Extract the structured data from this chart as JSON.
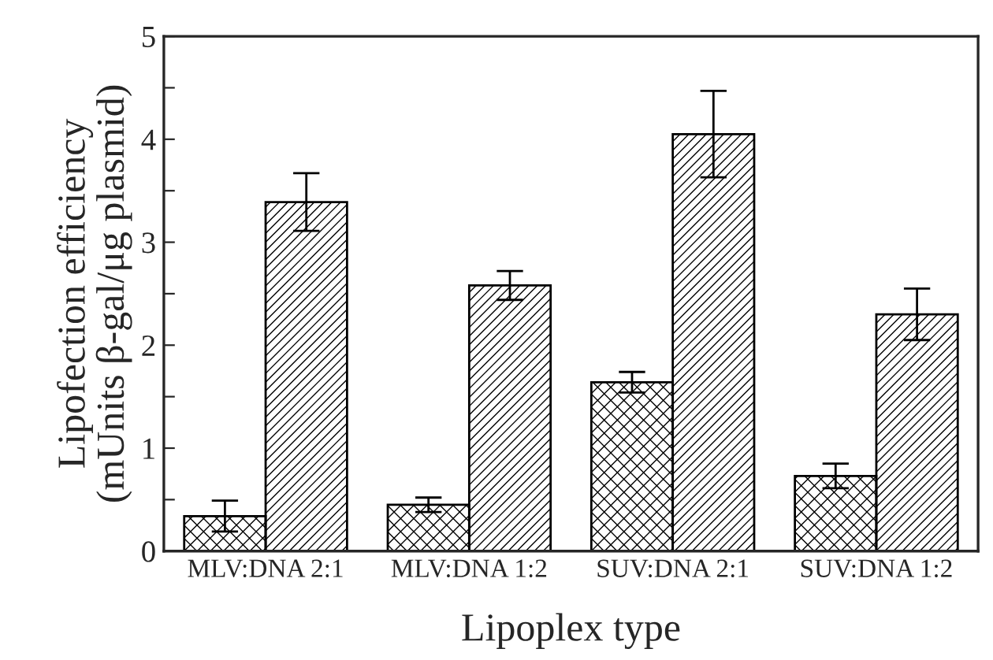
{
  "chart_data": {
    "type": "bar",
    "xlabel": "Lipoplex type",
    "ylabel": "Lipofection efficiency\n(mUnits β-gal/μg plasmid)",
    "categories": [
      "MLV:DNA 2:1",
      "MLV:DNA 1:2",
      "SUV:DNA 2:1",
      "SUV:DNA 1:2"
    ],
    "series": [
      {
        "color": "#000000",
        "values": [
          0.34,
          0.45,
          1.64,
          0.73
        ],
        "errors": [
          0.15,
          0.07,
          0.1,
          0.12
        ]
      },
      {
        "color": "#000000",
        "values": [
          3.39,
          2.58,
          4.05,
          2.3
        ],
        "errors": [
          0.28,
          0.14,
          0.42,
          0.25
        ]
      }
    ],
    "ylim": [
      0,
      5
    ],
    "yticks": [
      0,
      {
        "value": 0.5,
        "label": null
      },
      1,
      {
        "value": 1.5,
        "label": null
      },
      2,
      {
        "value": 2.5,
        "label": null
      },
      3,
      {
        "value": 3.5,
        "label": null
      },
      4,
      {
        "value": 4.5,
        "label": null
      },
      5
    ],
    "grid": false,
    "legend": false
  }
}
